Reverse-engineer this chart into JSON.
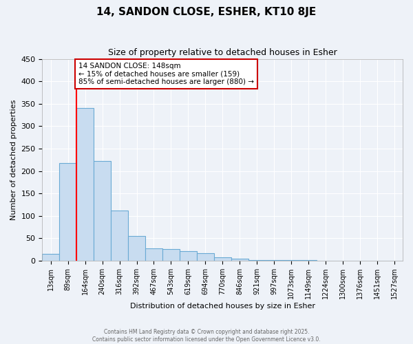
{
  "title": "14, SANDON CLOSE, ESHER, KT10 8JE",
  "subtitle": "Size of property relative to detached houses in Esher",
  "xlabel": "Distribution of detached houses by size in Esher",
  "ylabel": "Number of detached properties",
  "bar_labels": [
    "13sqm",
    "89sqm",
    "164sqm",
    "240sqm",
    "316sqm",
    "392sqm",
    "467sqm",
    "543sqm",
    "619sqm",
    "694sqm",
    "770sqm",
    "846sqm",
    "921sqm",
    "997sqm",
    "1073sqm",
    "1149sqm",
    "1224sqm",
    "1300sqm",
    "1376sqm",
    "1451sqm",
    "1527sqm"
  ],
  "bar_values": [
    15,
    218,
    340,
    223,
    112,
    55,
    27,
    26,
    21,
    17,
    8,
    5,
    2,
    1,
    1,
    1,
    0,
    0,
    0,
    0,
    0
  ],
  "bar_color": "#c8dcf0",
  "bar_edge_color": "#6aaad4",
  "ylim": [
    0,
    450
  ],
  "yticks": [
    0,
    50,
    100,
    150,
    200,
    250,
    300,
    350,
    400,
    450
  ],
  "redline_x": 2,
  "annotation_text": "14 SANDON CLOSE: 148sqm\n← 15% of detached houses are smaller (159)\n85% of semi-detached houses are larger (880) →",
  "annotation_box_color": "#ffffff",
  "annotation_box_edgecolor": "#cc0000",
  "bg_color": "#eef2f8",
  "grid_color": "#ffffff",
  "footer_line1": "Contains HM Land Registry data © Crown copyright and database right 2025.",
  "footer_line2": "Contains public sector information licensed under the Open Government Licence v3.0."
}
